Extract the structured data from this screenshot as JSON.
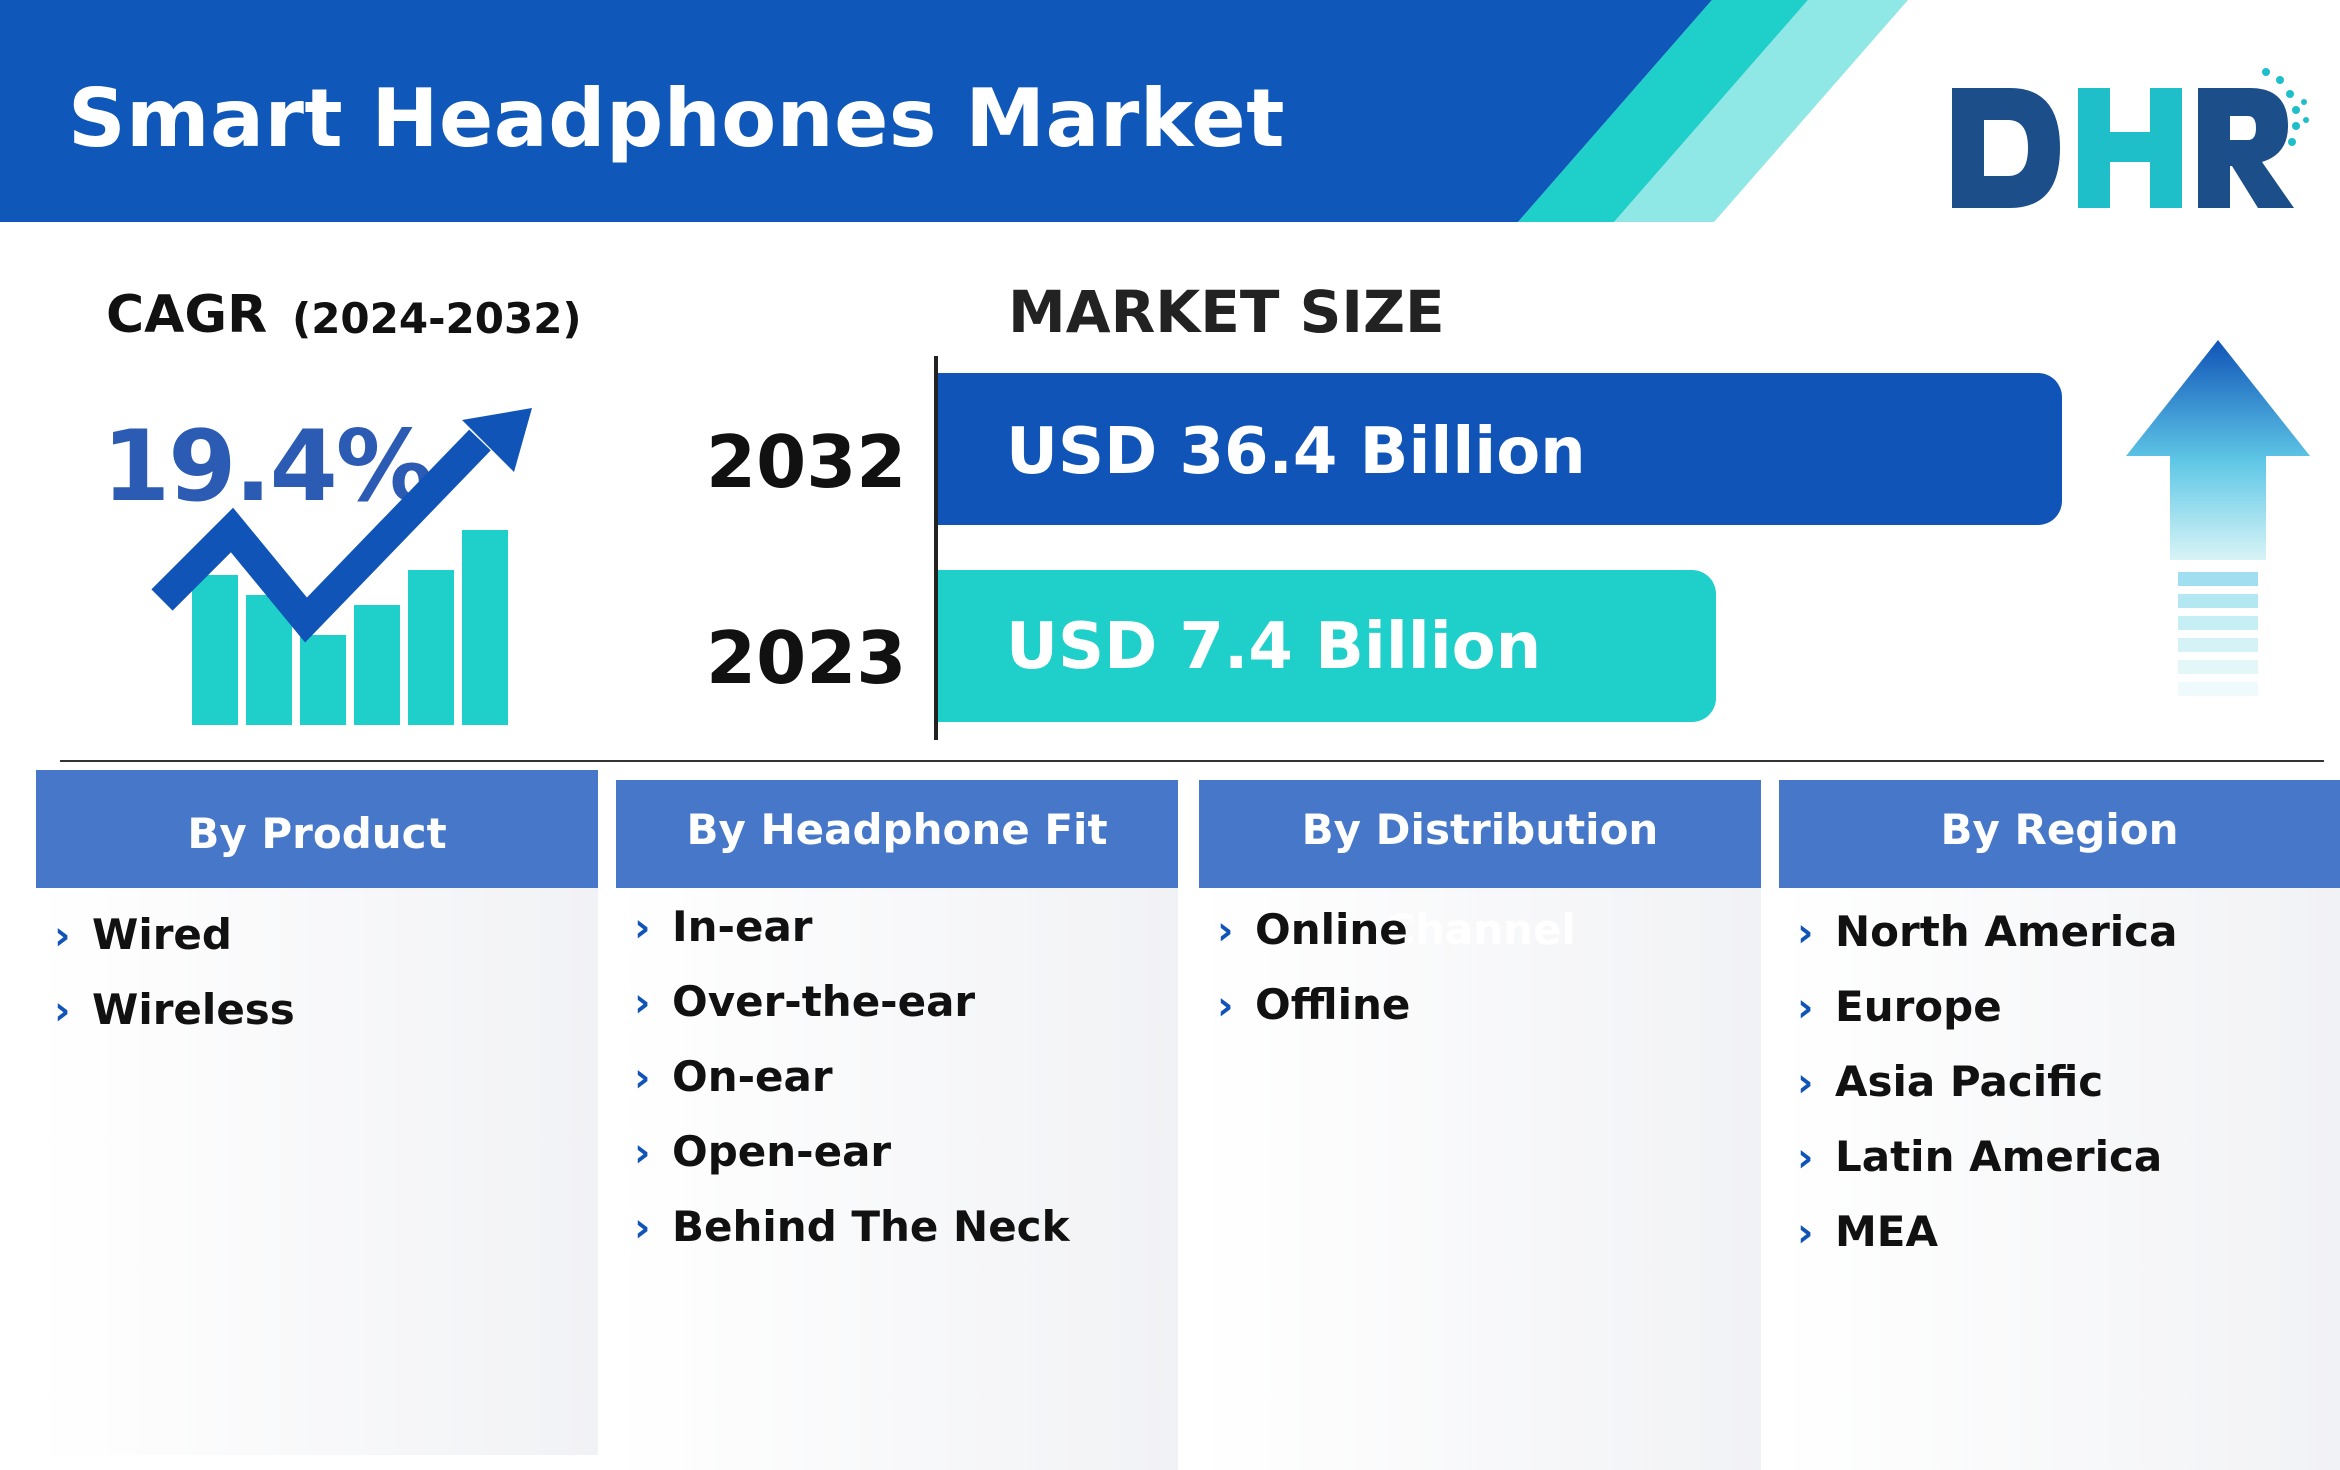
{
  "header": {
    "title": "Smart Headphones Market",
    "band_color": "#0f57b8",
    "accent_teal": "#1fcfc9",
    "accent_light": "#8fe7e6"
  },
  "logo": {
    "text": "DHR",
    "color_dark": "#1c4e8a",
    "color_teal": "#1fbfc9"
  },
  "cagr": {
    "label": "CAGR",
    "years": "(2024-2032)",
    "value": "19.4%",
    "icon": "growth-chart-icon"
  },
  "market_size": {
    "title": "MARKET SIZE",
    "rows": [
      {
        "year": "2032",
        "value_text": "USD 36.4 Billion",
        "value": 36.4,
        "color": "#1054b8"
      },
      {
        "year": "2023",
        "value_text": "USD 7.4 Billion",
        "value": 7.4,
        "color": "#1fcfc9"
      }
    ],
    "icon": "up-arrow-icon"
  },
  "segments": [
    {
      "heading": "By Product",
      "items": [
        "Wired",
        "Wireless"
      ]
    },
    {
      "heading": "By Headphone Fit",
      "items": [
        "In-ear",
        "Over-the-ear",
        "On-ear",
        "Open-ear",
        "Behind The Neck"
      ]
    },
    {
      "heading": "By Distribution Channel",
      "items": [
        "Online",
        "Offline"
      ]
    },
    {
      "heading": "By Region",
      "items": [
        "North America",
        "Europe",
        "Asia Pacific",
        "Latin America",
        "MEA"
      ]
    }
  ]
}
